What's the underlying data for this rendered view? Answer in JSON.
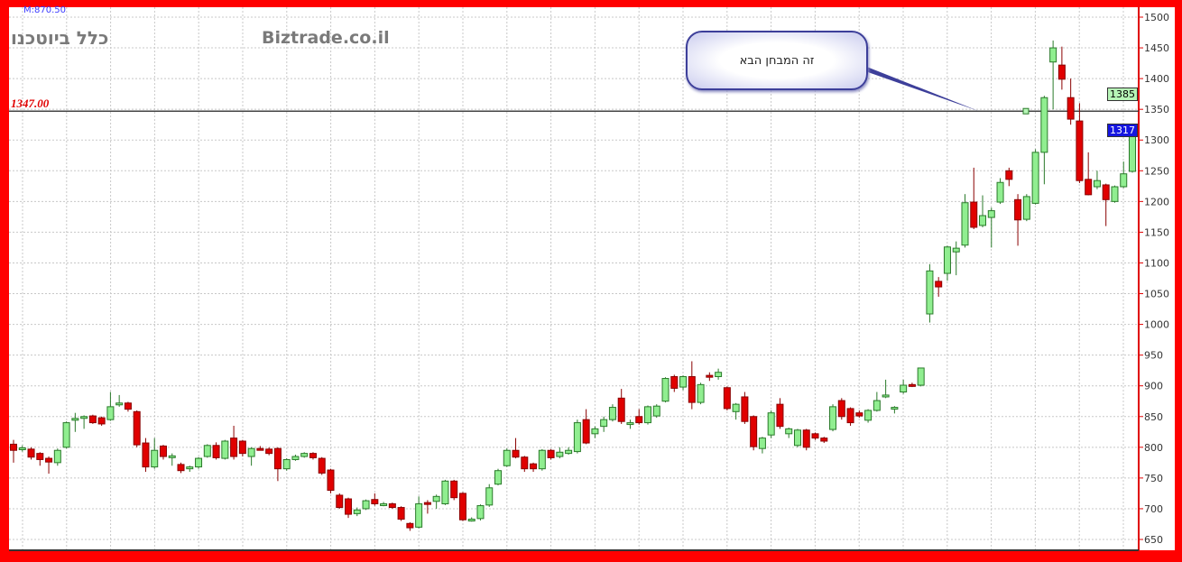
{
  "header": {
    "title": "כלל ביוטכנו",
    "watermark": "Biztrade.co.il",
    "m_value": "M:870.50"
  },
  "annotations": {
    "level_label": "1347.00",
    "callout_text": "זה המבחן הבא",
    "price_tag_1": "1385",
    "price_tag_2": "1317"
  },
  "chart_data": {
    "type": "candlestick",
    "title": "כלל ביוטכנו",
    "ylim": [
      640,
      1510
    ],
    "yticks": [
      650,
      700,
      750,
      800,
      850,
      900,
      950,
      1000,
      1050,
      1100,
      1150,
      1200,
      1250,
      1300,
      1350,
      1400,
      1450,
      1500
    ],
    "grid": true,
    "horizontal_line": 1347,
    "colors": {
      "up": "#90ee90",
      "down": "#e00000",
      "up_border": "#2a7a2a",
      "down_border": "#8a0000"
    },
    "ohlc": [
      [
        805,
        812,
        775,
        795
      ],
      [
        797,
        803,
        793,
        799
      ],
      [
        797,
        800,
        780,
        784
      ],
      [
        790,
        792,
        770,
        780
      ],
      [
        782,
        785,
        757,
        776
      ],
      [
        775,
        798,
        770,
        795
      ],
      [
        800,
        842,
        798,
        840
      ],
      [
        845,
        856,
        825,
        847
      ],
      [
        848,
        852,
        830,
        850
      ],
      [
        851,
        853,
        838,
        840
      ],
      [
        848,
        850,
        835,
        838
      ],
      [
        845,
        890,
        843,
        866
      ],
      [
        870,
        885,
        866,
        872
      ],
      [
        872,
        874,
        858,
        862
      ],
      [
        858,
        860,
        800,
        804
      ],
      [
        807,
        815,
        760,
        768
      ],
      [
        768,
        815,
        765,
        795
      ],
      [
        802,
        804,
        780,
        785
      ],
      [
        785,
        790,
        770,
        786
      ],
      [
        772,
        775,
        758,
        762
      ],
      [
        765,
        770,
        760,
        768
      ],
      [
        768,
        784,
        765,
        782
      ],
      [
        785,
        805,
        783,
        803
      ],
      [
        803,
        808,
        780,
        783
      ],
      [
        782,
        812,
        780,
        810
      ],
      [
        815,
        835,
        780,
        785
      ],
      [
        810,
        812,
        785,
        790
      ],
      [
        785,
        800,
        770,
        798
      ],
      [
        798,
        802,
        795,
        797
      ],
      [
        797,
        800,
        787,
        790
      ],
      [
        798,
        800,
        745,
        765
      ],
      [
        765,
        782,
        762,
        780
      ],
      [
        780,
        788,
        778,
        785
      ],
      [
        785,
        792,
        783,
        790
      ],
      [
        790,
        792,
        780,
        783
      ],
      [
        782,
        784,
        755,
        758
      ],
      [
        763,
        765,
        725,
        730
      ],
      [
        722,
        725,
        700,
        702
      ],
      [
        716,
        718,
        685,
        691
      ],
      [
        692,
        702,
        688,
        698
      ],
      [
        700,
        715,
        698,
        713
      ],
      [
        715,
        725,
        705,
        708
      ],
      [
        708,
        711,
        704,
        708
      ],
      [
        708,
        710,
        700,
        702
      ],
      [
        702,
        704,
        680,
        683
      ],
      [
        676,
        678,
        664,
        669
      ],
      [
        670,
        720,
        668,
        708
      ],
      [
        710,
        714,
        692,
        707
      ],
      [
        712,
        723,
        700,
        720
      ],
      [
        708,
        747,
        706,
        745
      ],
      [
        745,
        747,
        714,
        718
      ],
      [
        725,
        727,
        680,
        682
      ],
      [
        683,
        686,
        679,
        683
      ],
      [
        684,
        707,
        681,
        705
      ],
      [
        706,
        740,
        703,
        734
      ],
      [
        740,
        765,
        738,
        762
      ],
      [
        770,
        798,
        768,
        795
      ],
      [
        795,
        815,
        782,
        784
      ],
      [
        784,
        786,
        760,
        765
      ],
      [
        773,
        775,
        760,
        765
      ],
      [
        765,
        797,
        762,
        795
      ],
      [
        795,
        797,
        780,
        783
      ],
      [
        785,
        800,
        782,
        792
      ],
      [
        790,
        800,
        788,
        795
      ],
      [
        793,
        845,
        790,
        840
      ],
      [
        845,
        862,
        805,
        807
      ],
      [
        822,
        834,
        815,
        830
      ],
      [
        834,
        850,
        825,
        845
      ],
      [
        845,
        870,
        842,
        865
      ],
      [
        880,
        895,
        838,
        842
      ],
      [
        840,
        845,
        830,
        840
      ],
      [
        850,
        862,
        837,
        840
      ],
      [
        840,
        868,
        837,
        866
      ],
      [
        851,
        870,
        848,
        867
      ],
      [
        875,
        914,
        873,
        912
      ],
      [
        915,
        918,
        890,
        896
      ],
      [
        898,
        917,
        893,
        915
      ],
      [
        915,
        940,
        862,
        873
      ],
      [
        873,
        905,
        870,
        902
      ],
      [
        917,
        922,
        908,
        914
      ],
      [
        915,
        928,
        910,
        922
      ],
      [
        897,
        899,
        860,
        863
      ],
      [
        858,
        872,
        845,
        870
      ],
      [
        882,
        890,
        838,
        842
      ],
      [
        850,
        852,
        795,
        801
      ],
      [
        798,
        817,
        790,
        815
      ],
      [
        820,
        860,
        815,
        856
      ],
      [
        870,
        880,
        830,
        834
      ],
      [
        822,
        832,
        815,
        830
      ],
      [
        803,
        830,
        800,
        828
      ],
      [
        828,
        830,
        795,
        800
      ],
      [
        822,
        824,
        812,
        815
      ],
      [
        815,
        817,
        807,
        810
      ],
      [
        829,
        870,
        826,
        866
      ],
      [
        876,
        880,
        845,
        850
      ],
      [
        863,
        865,
        835,
        840
      ],
      [
        856,
        860,
        848,
        851
      ],
      [
        844,
        862,
        840,
        860
      ],
      [
        860,
        890,
        858,
        876
      ],
      [
        882,
        910,
        880,
        885
      ],
      [
        865,
        867,
        855,
        865
      ],
      [
        890,
        910,
        887,
        901
      ],
      [
        902,
        905,
        898,
        900
      ],
      [
        901,
        929,
        899,
        929
      ],
      [
        1017,
        1098,
        1003,
        1087
      ],
      [
        1070,
        1077,
        1045,
        1061
      ],
      [
        1083,
        1128,
        1071,
        1126
      ],
      [
        1118,
        1135,
        1080,
        1124
      ],
      [
        1129,
        1212,
        1125,
        1198
      ],
      [
        1199,
        1255,
        1155,
        1158
      ],
      [
        1161,
        1210,
        1158,
        1177
      ],
      [
        1174,
        1190,
        1125,
        1185
      ],
      [
        1199,
        1238,
        1196,
        1231
      ],
      [
        1250,
        1255,
        1225,
        1236
      ],
      [
        1203,
        1212,
        1128,
        1170
      ],
      [
        1171,
        1212,
        1168,
        1208
      ],
      [
        1197,
        1285,
        1195,
        1280
      ],
      [
        1280,
        1372,
        1228,
        1369
      ],
      [
        1427,
        1462,
        1350,
        1450
      ],
      [
        1422,
        1452,
        1382,
        1399
      ],
      [
        1369,
        1400,
        1325,
        1334
      ],
      [
        1331,
        1360,
        1230,
        1234
      ],
      [
        1236,
        1280,
        1210,
        1211
      ],
      [
        1224,
        1250,
        1220,
        1234
      ],
      [
        1227,
        1229,
        1160,
        1203
      ],
      [
        1200,
        1226,
        1198,
        1224
      ],
      [
        1224,
        1265,
        1222,
        1245
      ],
      [
        1249,
        1320,
        1247,
        1315
      ]
    ]
  }
}
